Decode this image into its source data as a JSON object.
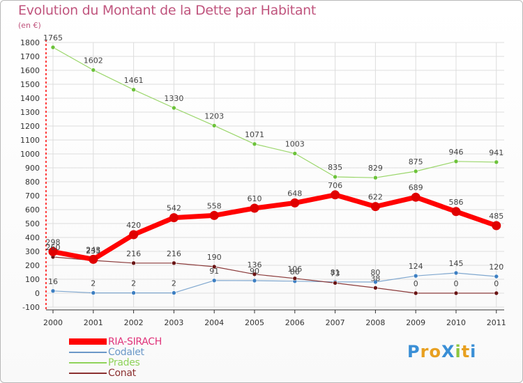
{
  "title": "Evolution du Montant de la Dette par Habitant",
  "subtitle": "(en €)",
  "logo": {
    "text": "ProXiti",
    "letters": [
      "P",
      "r",
      "o",
      "X",
      "i",
      "t",
      "i"
    ]
  },
  "colors": {
    "title": "#c0557e",
    "grid": "#dddddd",
    "axis": "#333333",
    "tick_marks": "#ff0000",
    "logo_letters": [
      "#3a8fd6",
      "#e8a020",
      "#e8a020",
      "#3a8fd6",
      "#8cc63f",
      "#e8a020",
      "#3a8fd6"
    ]
  },
  "chart_data": {
    "type": "line",
    "title": "Evolution du Montant de la Dette par Habitant",
    "ylabel": "(en €)",
    "xlabel": "",
    "ylim": [
      -100,
      1800
    ],
    "yticks": [
      -100,
      0,
      100,
      200,
      300,
      400,
      500,
      600,
      700,
      800,
      900,
      1000,
      1100,
      1200,
      1300,
      1400,
      1500,
      1600,
      1700,
      1800
    ],
    "categories": [
      "2000",
      "2001",
      "2002",
      "2003",
      "2004",
      "2005",
      "2006",
      "2007",
      "2008",
      "2009",
      "2010",
      "2011"
    ],
    "grid": true,
    "legend_position": "bottom-left",
    "series": [
      {
        "name": "RIA-SIRACH",
        "color": "#ff0000",
        "line_color": "#ff0000",
        "marker_color": "#e00000",
        "width": 7,
        "values": [
          298,
          243,
          420,
          542,
          558,
          610,
          648,
          706,
          622,
          689,
          586,
          485
        ],
        "labels": [
          "298",
          "243",
          "420",
          "542",
          "558",
          "610",
          "648",
          "706",
          "622",
          "689",
          "586",
          "485"
        ]
      },
      {
        "name": "Codalet",
        "color": "#6b98c8",
        "line_color": "#7fa7cf",
        "marker_color": "#3d7fc2",
        "width": 1.2,
        "values": [
          16,
          2,
          2,
          2,
          91,
          90,
          86,
          81,
          80,
          124,
          145,
          120
        ],
        "labels": [
          "16",
          "2",
          "2",
          "2",
          "91",
          "90",
          "86",
          "81",
          "80",
          "124",
          "145",
          "120"
        ]
      },
      {
        "name": "Prades",
        "color": "#8fd35a",
        "line_color": "#9ad66a",
        "marker_color": "#6cc23a",
        "width": 1.2,
        "values": [
          1765,
          1602,
          1461,
          1330,
          1203,
          1071,
          1003,
          835,
          829,
          875,
          946,
          941
        ],
        "labels": [
          "1765",
          "1602",
          "1461",
          "1330",
          "1203",
          "1071",
          "1003",
          "835",
          "829",
          "875",
          "946",
          "941"
        ]
      },
      {
        "name": "Conat",
        "color": "#8b3030",
        "line_color": "#8b3a3a",
        "marker_color": "#6a1515",
        "width": 1.2,
        "values": [
          260,
          235,
          216,
          216,
          190,
          136,
          106,
          73,
          38,
          0,
          0,
          0
        ],
        "labels": [
          "260",
          "235",
          "216",
          "216",
          "190",
          "136",
          "106",
          "73",
          "38",
          "0",
          "0",
          "0"
        ]
      }
    ]
  }
}
